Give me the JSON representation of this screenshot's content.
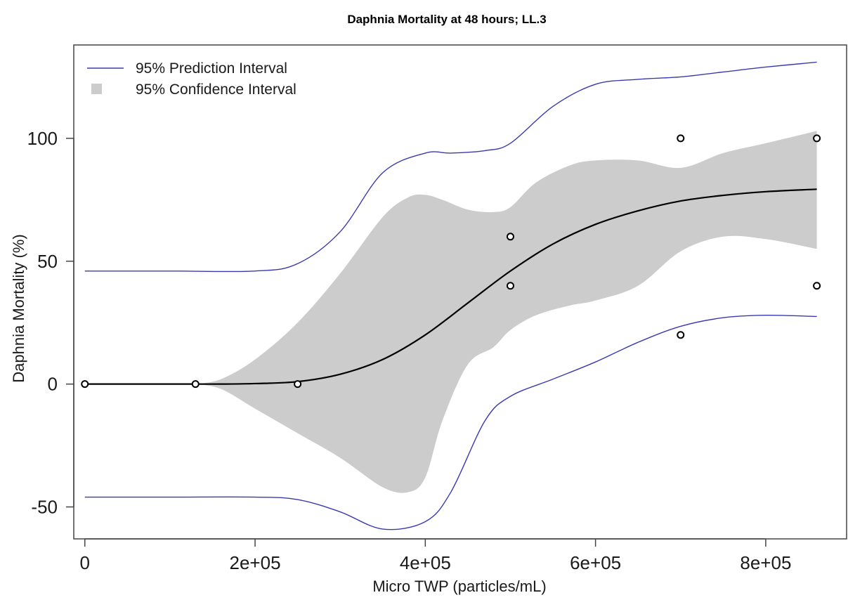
{
  "chart_data": {
    "type": "line",
    "title": "Daphnia Mortality at 48 hours; LL.3",
    "xlabel": "Micro TWP (particles/mL)",
    "ylabel": "Daphnia Mortality (%)",
    "xlim": [
      -13000,
      895000
    ],
    "ylim": [
      -63,
      138
    ],
    "x_ticks": [
      {
        "value": 0,
        "label": "0"
      },
      {
        "value": 200000,
        "label": "2e+05"
      },
      {
        "value": 400000,
        "label": "4e+05"
      },
      {
        "value": 600000,
        "label": "6e+05"
      },
      {
        "value": 800000,
        "label": "8e+05"
      }
    ],
    "y_ticks": [
      {
        "value": -50,
        "label": "-50"
      },
      {
        "value": 0,
        "label": "0"
      },
      {
        "value": 50,
        "label": "50"
      },
      {
        "value": 100,
        "label": "100"
      }
    ],
    "grid": false,
    "legend_position": "top-left",
    "legend": [
      {
        "label": "95% Prediction Interval",
        "kind": "line",
        "color": "#3a3ab0"
      },
      {
        "label": "95% Confidence Interval",
        "kind": "box",
        "color": "#cccccc"
      }
    ],
    "colors": {
      "prediction": "#3a3ab0",
      "confidence": "#cccccc",
      "fit": "#000000",
      "points": "#000000"
    },
    "points": [
      {
        "x": 0,
        "y": 0
      },
      {
        "x": 130000,
        "y": 0
      },
      {
        "x": 250000,
        "y": 0
      },
      {
        "x": 500000,
        "y": 60
      },
      {
        "x": 500000,
        "y": 40
      },
      {
        "x": 700000,
        "y": 100
      },
      {
        "x": 700000,
        "y": 20
      },
      {
        "x": 860000,
        "y": 100
      },
      {
        "x": 860000,
        "y": 40
      }
    ],
    "fit_curve": {
      "x": [
        0,
        100000,
        130000,
        160000,
        200000,
        250000,
        300000,
        350000,
        400000,
        450000,
        500000,
        550000,
        600000,
        650000,
        700000,
        750000,
        800000,
        860000
      ],
      "y": [
        0,
        0,
        0,
        0,
        0.2,
        1,
        4,
        10,
        20,
        33,
        46,
        57,
        65,
        70.5,
        74.5,
        76.8,
        78.3,
        79.3
      ]
    },
    "confidence_interval": {
      "x": [
        130000,
        160000,
        200000,
        250000,
        300000,
        350000,
        380000,
        400000,
        420000,
        450000,
        480000,
        500000,
        530000,
        570000,
        600000,
        650000,
        700000,
        750000,
        800000,
        860000
      ],
      "upper": [
        0,
        2,
        10,
        25,
        45,
        68,
        76,
        77,
        75,
        71,
        70,
        72,
        82,
        89,
        91,
        91,
        88,
        94,
        98,
        103
      ],
      "lower": [
        0,
        -2,
        -10,
        -20,
        -30,
        -42,
        -44,
        -38,
        -15,
        8,
        15,
        22,
        28,
        32,
        34,
        40,
        54,
        60,
        59,
        55
      ]
    },
    "prediction_interval": {
      "x": [
        0,
        100000,
        200000,
        250000,
        300000,
        350000,
        400000,
        430000,
        470000,
        500000,
        550000,
        600000,
        650000,
        700000,
        750000,
        800000,
        860000
      ],
      "upper": [
        46,
        46,
        46,
        49,
        62,
        86,
        94,
        94,
        95,
        98,
        113,
        122,
        124,
        125,
        127,
        129,
        131
      ],
      "lower": [
        -46,
        -46,
        -46,
        -47,
        -52,
        -59,
        -56,
        -44,
        -15,
        -5,
        2,
        9,
        17,
        23.5,
        27,
        28,
        27.5
      ]
    }
  }
}
